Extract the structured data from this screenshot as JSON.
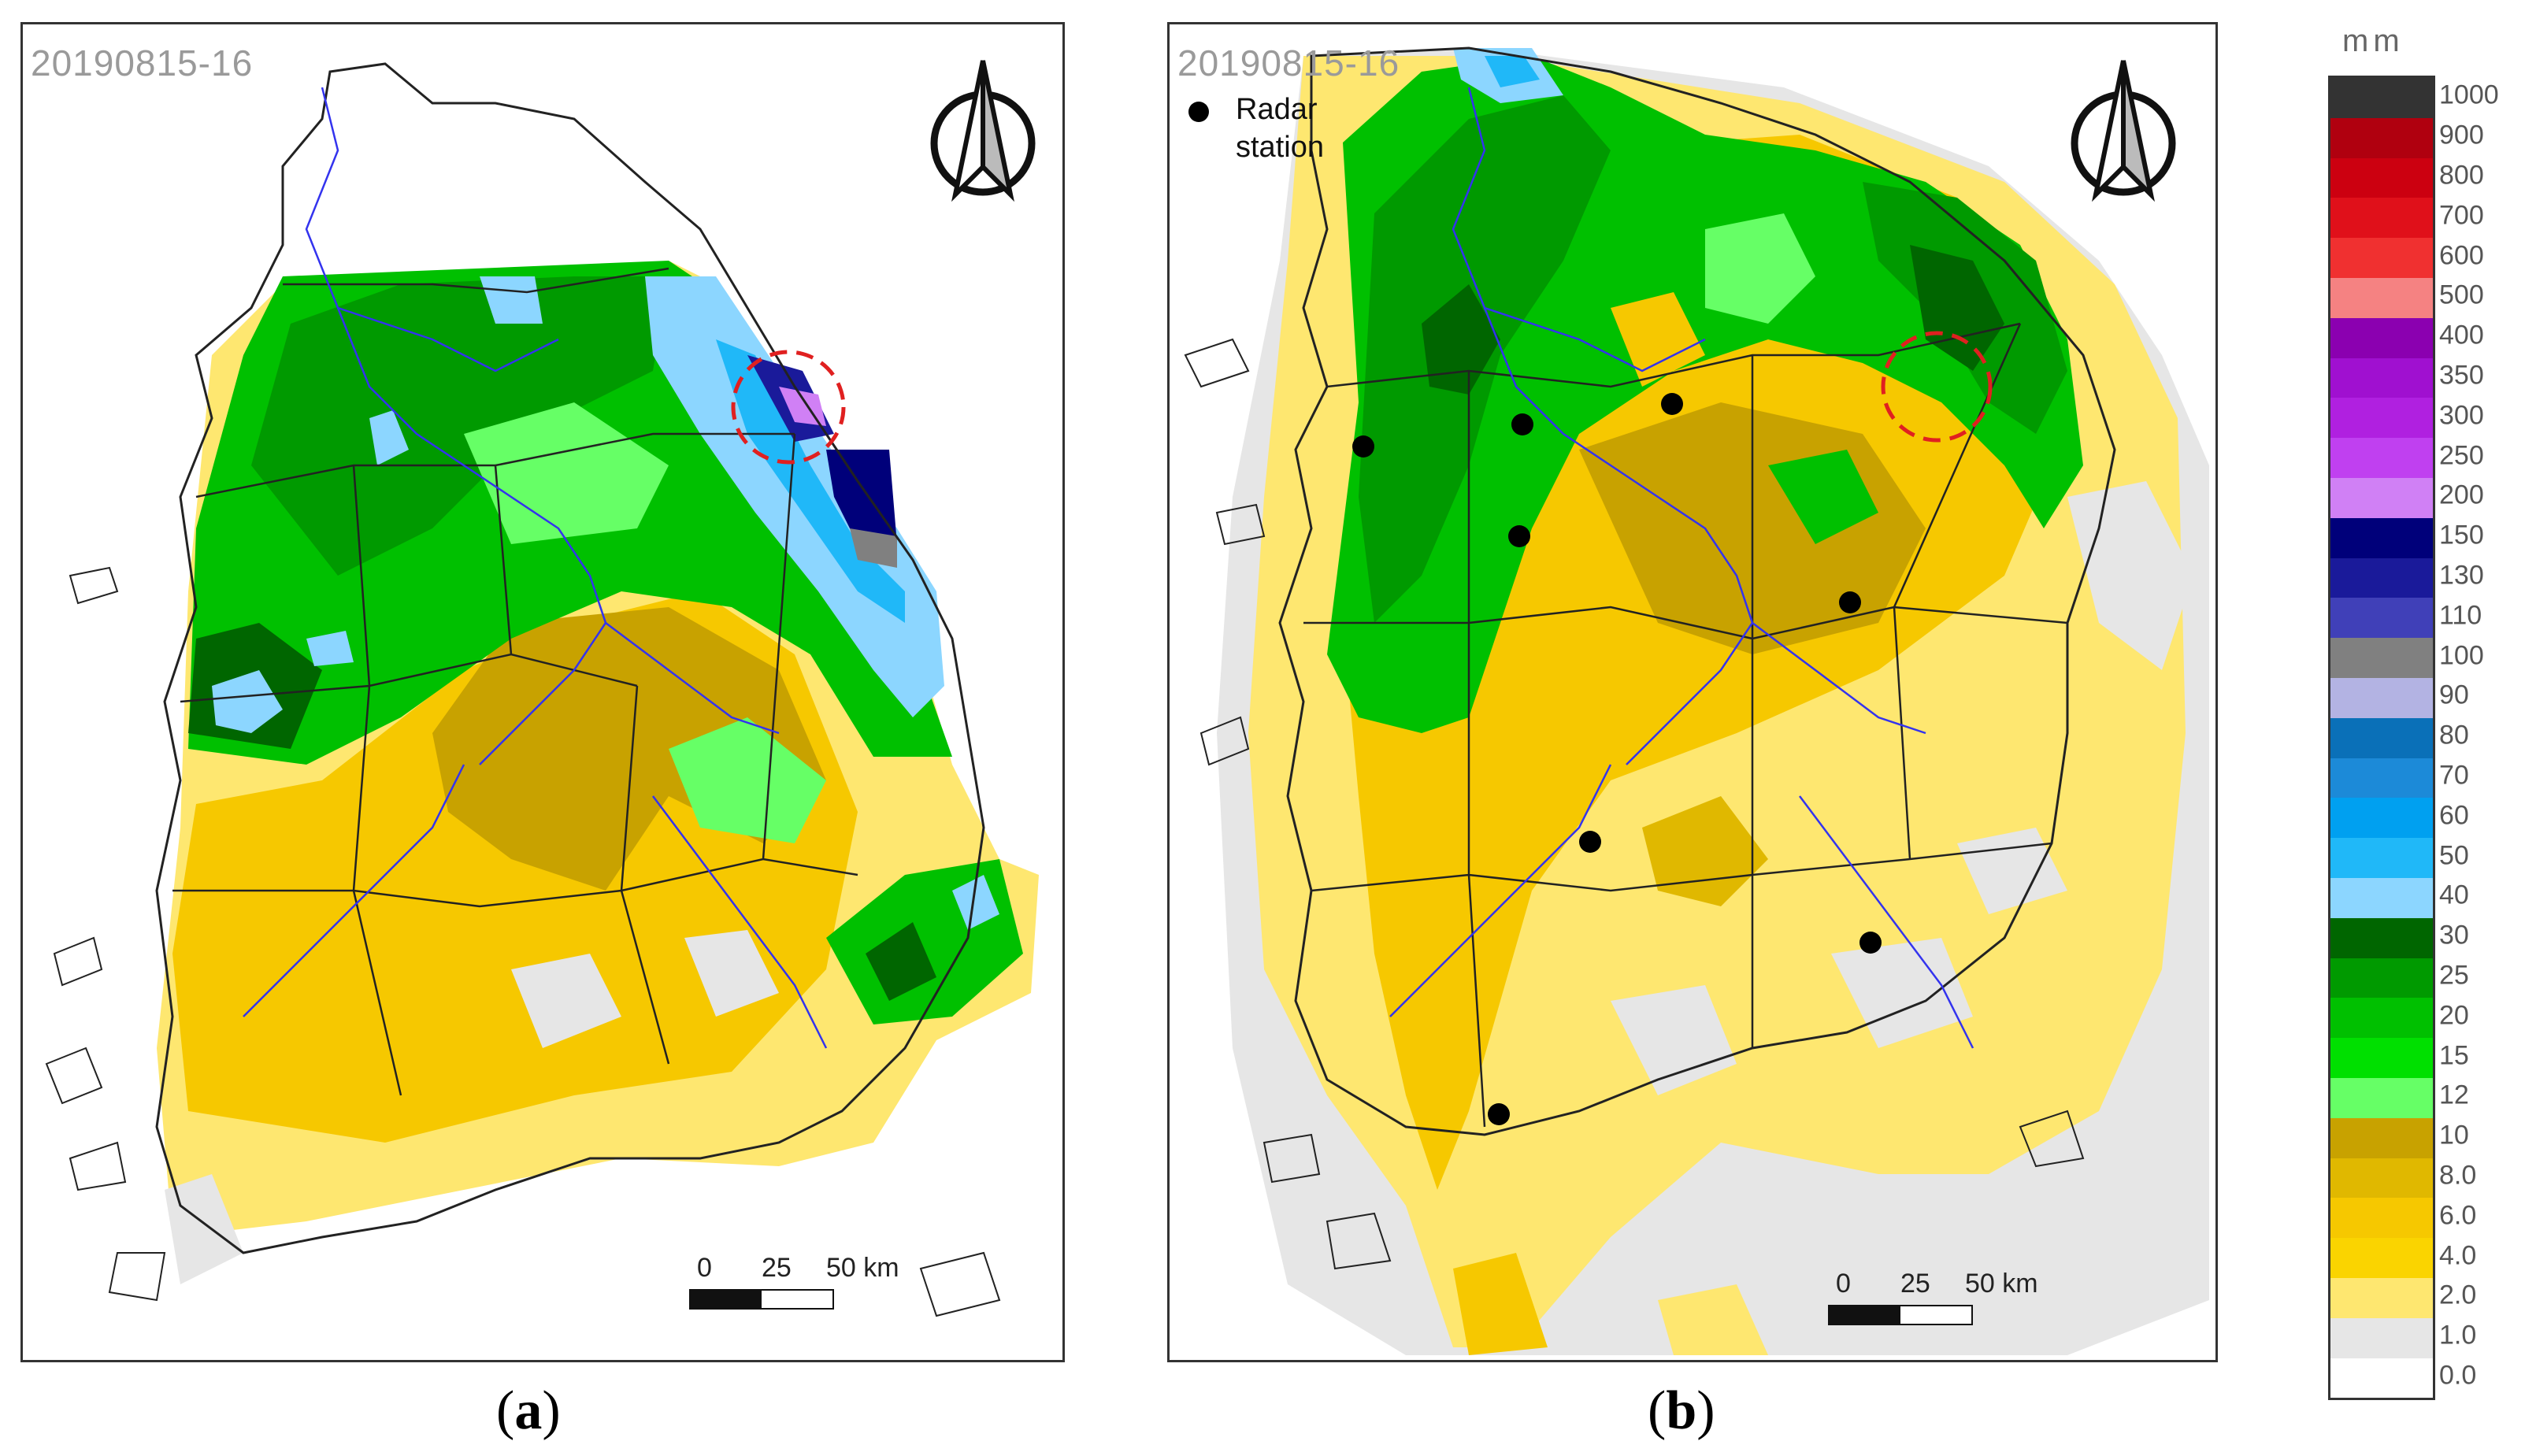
{
  "panel_a": {
    "timestamp": "20190815-16",
    "scale": {
      "zero": "0",
      "mid": "25",
      "end": "50 km"
    },
    "caption": {
      "open": "(",
      "letter": "a",
      "close": ")"
    }
  },
  "panel_b": {
    "timestamp": "20190815-16",
    "legend": {
      "line1": "Radar",
      "line2": "station"
    },
    "scale": {
      "zero": "0",
      "mid": "25",
      "end": "50 km"
    },
    "caption": {
      "open": "(",
      "letter": "b",
      "close": ")"
    }
  },
  "colorbar": {
    "unit": "mm",
    "levels": [
      {
        "label": "1000",
        "color": "#333333"
      },
      {
        "label": "900",
        "color": "#b0000f"
      },
      {
        "label": "800",
        "color": "#cc0010"
      },
      {
        "label": "700",
        "color": "#e0101a"
      },
      {
        "label": "600",
        "color": "#f03030"
      },
      {
        "label": "500",
        "color": "#f58282"
      },
      {
        "label": "400",
        "color": "#8b00b0"
      },
      {
        "label": "350",
        "color": "#a010d0"
      },
      {
        "label": "300",
        "color": "#b020e0"
      },
      {
        "label": "250",
        "color": "#c040f0"
      },
      {
        "label": "200",
        "color": "#d080f5"
      },
      {
        "label": "150",
        "color": "#00007a"
      },
      {
        "label": "130",
        "color": "#1a1a9a"
      },
      {
        "label": "110",
        "color": "#4040b8"
      },
      {
        "label": "100",
        "color": "#808080"
      },
      {
        "label": "90",
        "color": "#b3b3e3"
      },
      {
        "label": "80",
        "color": "#0a70b8"
      },
      {
        "label": "70",
        "color": "#1c8ad8"
      },
      {
        "label": "60",
        "color": "#00a0f0"
      },
      {
        "label": "50",
        "color": "#20b8f8"
      },
      {
        "label": "40",
        "color": "#8cd6ff"
      },
      {
        "label": "30",
        "color": "#006600"
      },
      {
        "label": "25",
        "color": "#009a00"
      },
      {
        "label": "20",
        "color": "#00c000"
      },
      {
        "label": "15",
        "color": "#00e000"
      },
      {
        "label": "12",
        "color": "#66ff66"
      },
      {
        "label": "10",
        "color": "#c8a200"
      },
      {
        "label": "8.0",
        "color": "#e0b800"
      },
      {
        "label": "6.0",
        "color": "#f6c800"
      },
      {
        "label": "4.0",
        "color": "#fad400"
      },
      {
        "label": "2.0",
        "color": "#fee770"
      },
      {
        "label": "1.0",
        "color": "#e6e6e6"
      },
      {
        "label": "0.0",
        "color": "#ffffff"
      }
    ]
  },
  "colors": {
    "river": "#3333ee",
    "boundary": "#222222",
    "highlight_circle": "#e02020"
  }
}
